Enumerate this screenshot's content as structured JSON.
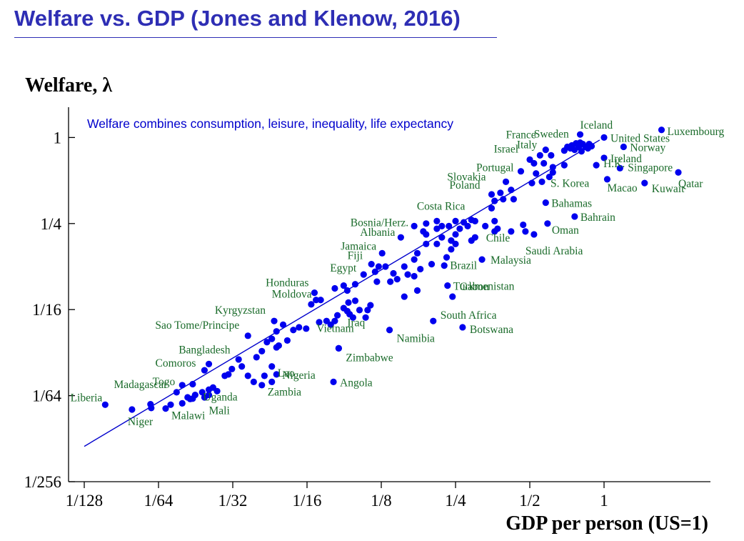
{
  "page": {
    "title": "Welfare vs. GDP (Jones and Klenow, 2016)"
  },
  "colors": {
    "title": "#2e2eb4",
    "point": "#0000ee",
    "label": "#1a6b2a",
    "fit_line": "#0000cc",
    "annotation": "#0000cc",
    "axis": "#000000"
  },
  "chart_data": {
    "type": "scatter",
    "title": "Welfare vs. GDP (Jones and Klenow, 2016)",
    "xlabel": "GDP per person (US=1)",
    "ylabel": "Welfare, λ",
    "x_scale": "log2",
    "y_scale": "log2",
    "xlim": [
      0.0078125,
      1.8
    ],
    "ylim": [
      0.00390625,
      1.5
    ],
    "x_ticks": [
      {
        "value": 0.0078125,
        "label": "1/128"
      },
      {
        "value": 0.015625,
        "label": "1/64"
      },
      {
        "value": 0.03125,
        "label": "1/32"
      },
      {
        "value": 0.0625,
        "label": "1/16"
      },
      {
        "value": 0.125,
        "label": "1/8"
      },
      {
        "value": 0.25,
        "label": "1/4"
      },
      {
        "value": 0.5,
        "label": "1/2"
      },
      {
        "value": 1,
        "label": "1"
      }
    ],
    "y_ticks": [
      {
        "value": 0.00390625,
        "label": "1/256"
      },
      {
        "value": 0.015625,
        "label": "1/64"
      },
      {
        "value": 0.0625,
        "label": "1/16"
      },
      {
        "value": 0.25,
        "label": "1/4"
      },
      {
        "value": 1,
        "label": "1"
      }
    ],
    "annotation": "Welfare combines consumption, leisure, inequality, life expectancy",
    "fit_line": [
      {
        "x": 0.0078125,
        "y": 0.0069
      },
      {
        "x": 0.96,
        "y": 0.96
      }
    ],
    "grid": false,
    "legend": "none",
    "labeled_points": [
      {
        "name": "Luxembourg",
        "x": 1.71,
        "y": 1.13
      },
      {
        "name": "Iceland",
        "x": 0.8,
        "y": 1.05
      },
      {
        "name": "Sweden",
        "x": 0.77,
        "y": 0.91
      },
      {
        "name": "United States",
        "x": 1.0,
        "y": 1.0
      },
      {
        "name": "France",
        "x": 0.71,
        "y": 0.86
      },
      {
        "name": "Norway",
        "x": 1.2,
        "y": 0.86
      },
      {
        "name": "Italy",
        "x": 0.58,
        "y": 0.82
      },
      {
        "name": "Ireland",
        "x": 1.0,
        "y": 0.72
      },
      {
        "name": "Israel",
        "x": 0.5,
        "y": 0.7
      },
      {
        "name": "H.K.",
        "x": 0.93,
        "y": 0.64
      },
      {
        "name": "Singapore",
        "x": 1.16,
        "y": 0.61
      },
      {
        "name": "Portugal",
        "x": 0.46,
        "y": 0.58
      },
      {
        "name": "Qatar",
        "x": 2.0,
        "y": 0.57
      },
      {
        "name": "Macao",
        "x": 1.03,
        "y": 0.51
      },
      {
        "name": "Kuwait",
        "x": 1.46,
        "y": 0.48
      },
      {
        "name": "Slovakia",
        "x": 0.4,
        "y": 0.49
      },
      {
        "name": "S. Korea",
        "x": 0.56,
        "y": 0.49
      },
      {
        "name": "Poland",
        "x": 0.35,
        "y": 0.4
      },
      {
        "name": "Bahamas",
        "x": 0.58,
        "y": 0.35
      },
      {
        "name": "Bahrain",
        "x": 0.76,
        "y": 0.28
      },
      {
        "name": "Costa Rica",
        "x": 0.21,
        "y": 0.26
      },
      {
        "name": "Oman",
        "x": 0.59,
        "y": 0.25
      },
      {
        "name": "Bosnia/Herz.",
        "x": 0.17,
        "y": 0.24
      },
      {
        "name": "Chile",
        "x": 0.36,
        "y": 0.22
      },
      {
        "name": "Albania",
        "x": 0.15,
        "y": 0.2
      },
      {
        "name": "Saudi Arabia",
        "x": 0.52,
        "y": 0.21
      },
      {
        "name": "Malaysia",
        "x": 0.32,
        "y": 0.14
      },
      {
        "name": "Jamaica",
        "x": 0.126,
        "y": 0.155
      },
      {
        "name": "Fiji",
        "x": 0.114,
        "y": 0.13
      },
      {
        "name": "Brazil",
        "x": 0.225,
        "y": 0.127
      },
      {
        "name": "Egypt",
        "x": 0.106,
        "y": 0.11
      },
      {
        "name": "Turkmenistan",
        "x": 0.232,
        "y": 0.092
      },
      {
        "name": "Honduras",
        "x": 0.067,
        "y": 0.082
      },
      {
        "name": "Gabon",
        "x": 0.243,
        "y": 0.077
      },
      {
        "name": "Moldova",
        "x": 0.068,
        "y": 0.073
      },
      {
        "name": "Kyrgyzstan",
        "x": 0.046,
        "y": 0.052
      },
      {
        "name": "Iraq",
        "x": 0.091,
        "y": 0.061
      },
      {
        "name": "South Africa",
        "x": 0.203,
        "y": 0.052
      },
      {
        "name": "Sao Tome/Principe",
        "x": 0.036,
        "y": 0.041
      },
      {
        "name": "Vietnam",
        "x": 0.078,
        "y": 0.049
      },
      {
        "name": "Namibia",
        "x": 0.135,
        "y": 0.045
      },
      {
        "name": "Botswana",
        "x": 0.267,
        "y": 0.047
      },
      {
        "name": "Zimbabwe",
        "x": 0.084,
        "y": 0.0335
      },
      {
        "name": "Bangladesh",
        "x": 0.025,
        "y": 0.026
      },
      {
        "name": "Lao",
        "x": 0.045,
        "y": 0.025
      },
      {
        "name": "Comoros",
        "x": 0.024,
        "y": 0.0235
      },
      {
        "name": "Nigeria",
        "x": 0.047,
        "y": 0.022
      },
      {
        "name": "Togo",
        "x": 0.0195,
        "y": 0.0185
      },
      {
        "name": "Angola",
        "x": 0.08,
        "y": 0.0195
      },
      {
        "name": "Madagascar",
        "x": 0.0185,
        "y": 0.0165
      },
      {
        "name": "Zambia",
        "x": 0.045,
        "y": 0.0195
      },
      {
        "name": "Uganda",
        "x": 0.026,
        "y": 0.0178
      },
      {
        "name": "Liberia",
        "x": 0.0095,
        "y": 0.0135
      },
      {
        "name": "Mali",
        "x": 0.025,
        "y": 0.0158
      },
      {
        "name": "Niger",
        "x": 0.0122,
        "y": 0.0125
      },
      {
        "name": "Malawi",
        "x": 0.0167,
        "y": 0.0127
      }
    ],
    "unlabeled_points": [
      {
        "x": 0.82,
        "y": 0.9
      },
      {
        "x": 0.84,
        "y": 0.86
      },
      {
        "x": 0.87,
        "y": 0.9
      },
      {
        "x": 0.86,
        "y": 0.84
      },
      {
        "x": 0.79,
        "y": 0.86
      },
      {
        "x": 0.76,
        "y": 0.82
      },
      {
        "x": 0.81,
        "y": 0.8
      },
      {
        "x": 0.73,
        "y": 0.84
      },
      {
        "x": 0.69,
        "y": 0.81
      },
      {
        "x": 0.89,
        "y": 0.87
      },
      {
        "x": 0.74,
        "y": 0.88
      },
      {
        "x": 0.8,
        "y": 0.92
      },
      {
        "x": 0.61,
        "y": 0.75
      },
      {
        "x": 0.55,
        "y": 0.75
      },
      {
        "x": 0.57,
        "y": 0.66
      },
      {
        "x": 0.62,
        "y": 0.62
      },
      {
        "x": 0.52,
        "y": 0.66
      },
      {
        "x": 0.62,
        "y": 0.57
      },
      {
        "x": 0.69,
        "y": 0.64
      },
      {
        "x": 0.53,
        "y": 0.56
      },
      {
        "x": 0.6,
        "y": 0.53
      },
      {
        "x": 0.51,
        "y": 0.48
      },
      {
        "x": 0.42,
        "y": 0.43
      },
      {
        "x": 0.38,
        "y": 0.41
      },
      {
        "x": 0.39,
        "y": 0.37
      },
      {
        "x": 0.43,
        "y": 0.37
      },
      {
        "x": 0.36,
        "y": 0.36
      },
      {
        "x": 0.35,
        "y": 0.32
      },
      {
        "x": 0.36,
        "y": 0.26
      },
      {
        "x": 0.37,
        "y": 0.23
      },
      {
        "x": 0.33,
        "y": 0.24
      },
      {
        "x": 0.3,
        "y": 0.26
      },
      {
        "x": 0.29,
        "y": 0.265
      },
      {
        "x": 0.28,
        "y": 0.24
      },
      {
        "x": 0.27,
        "y": 0.255
      },
      {
        "x": 0.25,
        "y": 0.26
      },
      {
        "x": 0.235,
        "y": 0.24
      },
      {
        "x": 0.22,
        "y": 0.24
      },
      {
        "x": 0.21,
        "y": 0.23
      },
      {
        "x": 0.19,
        "y": 0.25
      },
      {
        "x": 0.185,
        "y": 0.22
      },
      {
        "x": 0.19,
        "y": 0.21
      },
      {
        "x": 0.22,
        "y": 0.2
      },
      {
        "x": 0.25,
        "y": 0.21
      },
      {
        "x": 0.26,
        "y": 0.23
      },
      {
        "x": 0.24,
        "y": 0.19
      },
      {
        "x": 0.29,
        "y": 0.19
      },
      {
        "x": 0.3,
        "y": 0.2
      },
      {
        "x": 0.42,
        "y": 0.22
      },
      {
        "x": 0.48,
        "y": 0.22
      },
      {
        "x": 0.47,
        "y": 0.245
      },
      {
        "x": 0.25,
        "y": 0.18
      },
      {
        "x": 0.24,
        "y": 0.165
      },
      {
        "x": 0.23,
        "y": 0.145
      },
      {
        "x": 0.21,
        "y": 0.18
      },
      {
        "x": 0.19,
        "y": 0.18
      },
      {
        "x": 0.175,
        "y": 0.155
      },
      {
        "x": 0.2,
        "y": 0.13
      },
      {
        "x": 0.17,
        "y": 0.14
      },
      {
        "x": 0.155,
        "y": 0.125
      },
      {
        "x": 0.18,
        "y": 0.12
      },
      {
        "x": 0.17,
        "y": 0.107
      },
      {
        "x": 0.14,
        "y": 0.112
      },
      {
        "x": 0.13,
        "y": 0.125
      },
      {
        "x": 0.122,
        "y": 0.125
      },
      {
        "x": 0.118,
        "y": 0.115
      },
      {
        "x": 0.12,
        "y": 0.098
      },
      {
        "x": 0.136,
        "y": 0.098
      },
      {
        "x": 0.145,
        "y": 0.102
      },
      {
        "x": 0.16,
        "y": 0.11
      },
      {
        "x": 0.175,
        "y": 0.085
      },
      {
        "x": 0.155,
        "y": 0.077
      },
      {
        "x": 0.098,
        "y": 0.094
      },
      {
        "x": 0.088,
        "y": 0.092
      },
      {
        "x": 0.091,
        "y": 0.085
      },
      {
        "x": 0.081,
        "y": 0.088
      },
      {
        "x": 0.071,
        "y": 0.073
      },
      {
        "x": 0.065,
        "y": 0.068
      },
      {
        "x": 0.098,
        "y": 0.072
      },
      {
        "x": 0.092,
        "y": 0.07
      },
      {
        "x": 0.088,
        "y": 0.064
      },
      {
        "x": 0.093,
        "y": 0.058
      },
      {
        "x": 0.096,
        "y": 0.055
      },
      {
        "x": 0.102,
        "y": 0.062
      },
      {
        "x": 0.11,
        "y": 0.062
      },
      {
        "x": 0.113,
        "y": 0.067
      },
      {
        "x": 0.108,
        "y": 0.055
      },
      {
        "x": 0.083,
        "y": 0.057
      },
      {
        "x": 0.081,
        "y": 0.052
      },
      {
        "x": 0.075,
        "y": 0.052
      },
      {
        "x": 0.07,
        "y": 0.051
      },
      {
        "x": 0.062,
        "y": 0.046
      },
      {
        "x": 0.058,
        "y": 0.047
      },
      {
        "x": 0.055,
        "y": 0.045
      },
      {
        "x": 0.05,
        "y": 0.049
      },
      {
        "x": 0.047,
        "y": 0.044
      },
      {
        "x": 0.048,
        "y": 0.035
      },
      {
        "x": 0.043,
        "y": 0.037
      },
      {
        "x": 0.045,
        "y": 0.039
      },
      {
        "x": 0.052,
        "y": 0.038
      },
      {
        "x": 0.047,
        "y": 0.034
      },
      {
        "x": 0.041,
        "y": 0.032
      },
      {
        "x": 0.039,
        "y": 0.029
      },
      {
        "x": 0.033,
        "y": 0.028
      },
      {
        "x": 0.031,
        "y": 0.024
      },
      {
        "x": 0.034,
        "y": 0.025
      },
      {
        "x": 0.03,
        "y": 0.022
      },
      {
        "x": 0.029,
        "y": 0.0215
      },
      {
        "x": 0.036,
        "y": 0.0215
      },
      {
        "x": 0.038,
        "y": 0.0195
      },
      {
        "x": 0.041,
        "y": 0.0185
      },
      {
        "x": 0.042,
        "y": 0.0215
      },
      {
        "x": 0.027,
        "y": 0.0168
      },
      {
        "x": 0.025,
        "y": 0.0172
      },
      {
        "x": 0.0235,
        "y": 0.0165
      },
      {
        "x": 0.024,
        "y": 0.0152
      },
      {
        "x": 0.022,
        "y": 0.0158
      },
      {
        "x": 0.021,
        "y": 0.0148
      },
      {
        "x": 0.0195,
        "y": 0.0138
      },
      {
        "x": 0.0205,
        "y": 0.0152
      },
      {
        "x": 0.0215,
        "y": 0.0188
      },
      {
        "x": 0.0175,
        "y": 0.0135
      },
      {
        "x": 0.0146,
        "y": 0.0128
      },
      {
        "x": 0.0145,
        "y": 0.0136
      },
      {
        "x": 0.0215,
        "y": 0.0149
      },
      {
        "x": 0.084,
        "y": 0.0335
      }
    ]
  }
}
